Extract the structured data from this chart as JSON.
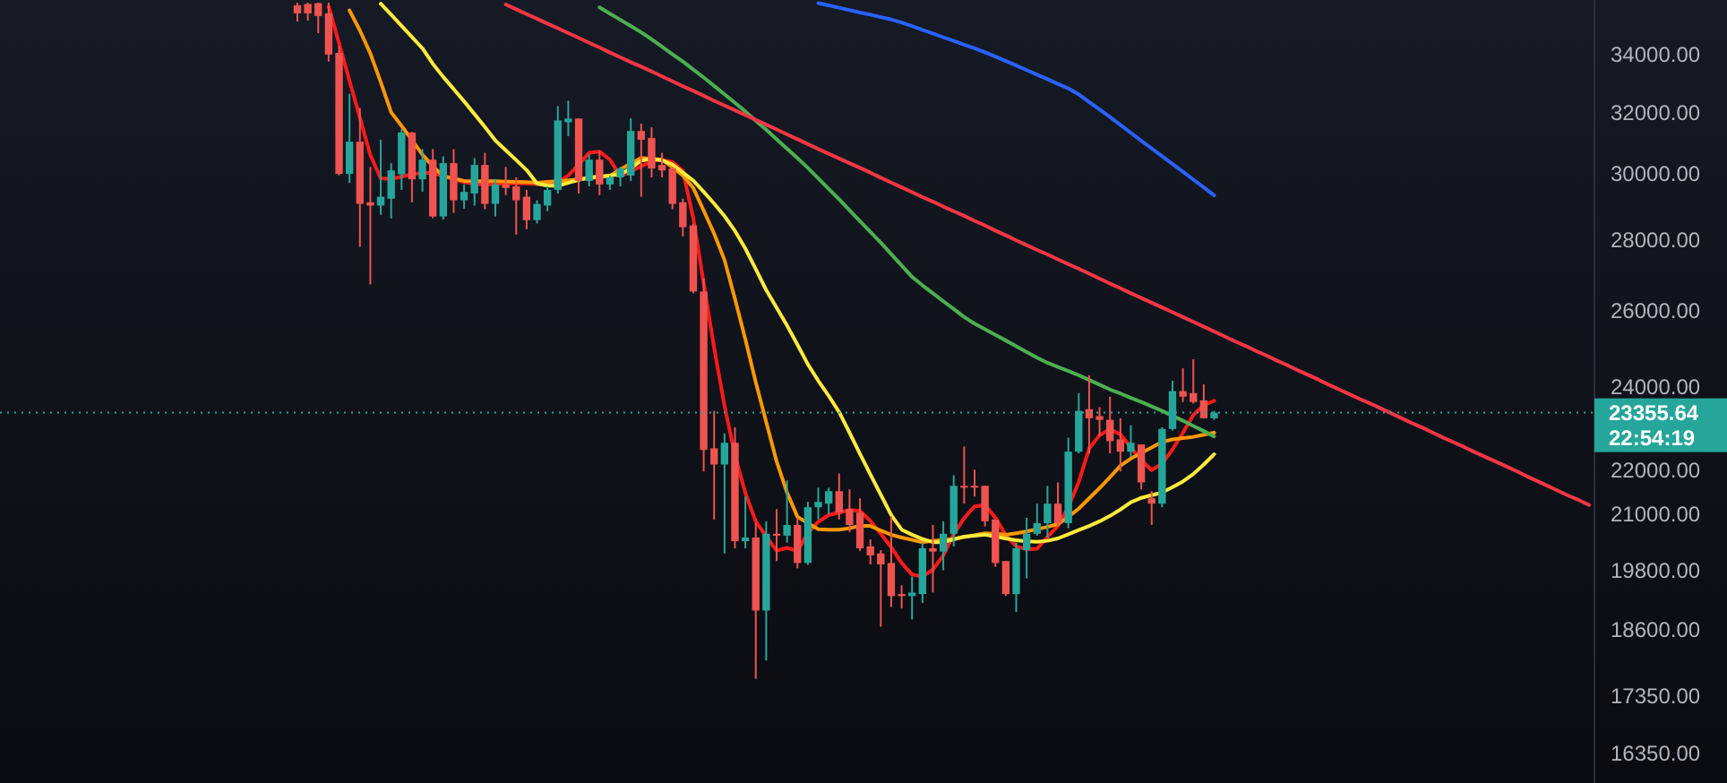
{
  "chart_data": {
    "type": "candlestick",
    "log": true,
    "tick_labels": "y",
    "grid": false,
    "ylim": [
      15840,
      36000
    ],
    "yticks": [
      {
        "value": 16350,
        "label": "16350.00"
      },
      {
        "value": 17350,
        "label": "17350.00"
      },
      {
        "value": 18600,
        "label": "18600.00"
      },
      {
        "value": 19800,
        "label": "19800.00"
      },
      {
        "value": 21000,
        "label": "21000.00"
      },
      {
        "value": 22000,
        "label": "22000.00"
      },
      {
        "value": 24000,
        "label": "24000.00"
      },
      {
        "value": 26000,
        "label": "26000.00"
      },
      {
        "value": 28000,
        "label": "28000.00"
      },
      {
        "value": 30000,
        "label": "30000.00"
      },
      {
        "value": 32000,
        "label": "32000.00"
      },
      {
        "value": 34000,
        "label": "34000.00"
      }
    ],
    "categories": [
      null,
      null,
      null,
      null,
      null,
      null,
      null,
      null,
      null,
      null,
      null,
      null,
      null,
      null,
      null,
      null,
      null,
      null,
      null,
      null,
      null,
      null,
      null,
      null,
      null,
      null,
      null,
      null,
      null,
      null,
      null,
      null,
      null,
      null,
      null,
      null,
      null,
      null,
      null,
      null,
      null,
      null,
      null,
      null,
      null,
      null,
      null,
      null,
      null,
      null,
      null,
      null,
      null,
      null,
      null,
      null,
      null,
      null,
      null,
      null,
      null,
      null,
      null,
      null,
      null,
      null,
      null,
      null,
      null,
      null,
      null,
      null,
      null,
      null,
      null,
      null,
      null,
      null,
      null,
      null,
      null,
      null,
      null,
      null,
      null,
      null,
      null,
      null,
      null,
      null,
      null,
      null,
      null,
      null,
      null,
      null,
      null,
      null,
      null,
      null,
      null,
      null,
      null,
      null,
      null,
      null,
      null,
      null,
      null,
      null,
      null,
      null,
      null,
      null,
      null,
      null,
      null,
      null,
      null,
      null,
      null,
      null,
      null,
      null,
      null
    ],
    "ohlc": [
      [
        35800,
        35900,
        35200,
        35500
      ],
      [
        35850,
        35900,
        35230,
        35500
      ],
      [
        35880,
        35900,
        34770,
        35400
      ],
      [
        35500,
        35900,
        33750,
        34000
      ],
      [
        34060,
        34320,
        29950,
        30000
      ],
      [
        30000,
        32630,
        29720,
        31030
      ],
      [
        31030,
        32150,
        27790,
        29070
      ],
      [
        29120,
        30220,
        26720,
        29020
      ],
      [
        29020,
        31090,
        28740,
        29290
      ],
      [
        29230,
        30340,
        28630,
        30110
      ],
      [
        29990,
        31440,
        29500,
        31330
      ],
      [
        31330,
        31350,
        29120,
        29830
      ],
      [
        29830,
        30790,
        29440,
        30450
      ],
      [
        30450,
        30790,
        28640,
        28690
      ],
      [
        28690,
        30560,
        28600,
        30340
      ],
      [
        30340,
        30790,
        28800,
        29180
      ],
      [
        29180,
        29670,
        28920,
        29440
      ],
      [
        29390,
        30500,
        29020,
        30280
      ],
      [
        30280,
        30670,
        28910,
        29070
      ],
      [
        29070,
        29840,
        28690,
        29670
      ],
      [
        29670,
        30220,
        29340,
        29560
      ],
      [
        29610,
        29890,
        28150,
        29180
      ],
      [
        29290,
        29500,
        28310,
        28580
      ],
      [
        28580,
        29180,
        28480,
        29070
      ],
      [
        29020,
        29610,
        28850,
        29500
      ],
      [
        29500,
        32210,
        29390,
        31730
      ],
      [
        31670,
        32390,
        31210,
        31790
      ],
      [
        31790,
        31800,
        29390,
        29780
      ],
      [
        29780,
        30620,
        29610,
        30450
      ],
      [
        30450,
        30730,
        29340,
        29670
      ],
      [
        29670,
        29950,
        29500,
        29890
      ],
      [
        29890,
        30220,
        29610,
        30170
      ],
      [
        29950,
        31800,
        29780,
        31380
      ],
      [
        31380,
        31620,
        29290,
        31090
      ],
      [
        31150,
        31500,
        29890,
        30170
      ],
      [
        30280,
        30670,
        29890,
        30110
      ],
      [
        30170,
        30220,
        28910,
        29070
      ],
      [
        29120,
        29230,
        28100,
        28370
      ],
      [
        28420,
        28470,
        26470,
        26520
      ],
      [
        26520,
        26880,
        21960,
        22460
      ],
      [
        22500,
        23400,
        20880,
        22120
      ],
      [
        22120,
        22850,
        20150,
        22630
      ],
      [
        22630,
        23000,
        20260,
        20410
      ],
      [
        20410,
        21390,
        20260,
        20490
      ],
      [
        20490,
        20800,
        17670,
        18980
      ],
      [
        18980,
        20840,
        18010,
        20570
      ],
      [
        20570,
        21110,
        19990,
        20530
      ],
      [
        20530,
        21750,
        20380,
        20760
      ],
      [
        20760,
        20920,
        19840,
        19950
      ],
      [
        19950,
        21270,
        19910,
        21150
      ],
      [
        21150,
        21590,
        20880,
        21270
      ],
      [
        21230,
        21590,
        21000,
        21510
      ],
      [
        21510,
        21910,
        20880,
        21030
      ],
      [
        21110,
        21550,
        20610,
        20760
      ],
      [
        21030,
        21350,
        20200,
        20260
      ],
      [
        20300,
        20450,
        19920,
        20110
      ],
      [
        20150,
        20220,
        18660,
        19920
      ],
      [
        19950,
        20950,
        19050,
        19270
      ],
      [
        19310,
        19490,
        19020,
        19270
      ],
      [
        19270,
        19670,
        18800,
        19340
      ],
      [
        19310,
        20380,
        19130,
        20260
      ],
      [
        20260,
        20760,
        19340,
        20190
      ],
      [
        20190,
        20840,
        19800,
        20570
      ],
      [
        20570,
        21870,
        20300,
        21630
      ],
      [
        21630,
        22540,
        21230,
        21590
      ],
      [
        21630,
        22000,
        21390,
        21590
      ],
      [
        21630,
        21630,
        20730,
        20840
      ],
      [
        20880,
        20880,
        19870,
        19950
      ],
      [
        19990,
        19990,
        19270,
        19310
      ],
      [
        19310,
        20380,
        18950,
        20260
      ],
      [
        20220,
        20920,
        19630,
        20570
      ],
      [
        20570,
        21230,
        20530,
        20800
      ],
      [
        20800,
        21630,
        20490,
        21230
      ],
      [
        21230,
        21710,
        20730,
        20800
      ],
      [
        20800,
        22750,
        20690,
        22420
      ],
      [
        22420,
        23840,
        22380,
        23400
      ],
      [
        23440,
        24290,
        22380,
        23220
      ],
      [
        23270,
        23490,
        22790,
        23180
      ],
      [
        23180,
        23750,
        22380,
        22670
      ],
      [
        22710,
        23220,
        21960,
        22420
      ],
      [
        22420,
        23050,
        22290,
        22630
      ],
      [
        22590,
        22590,
        21550,
        21710
      ],
      [
        21350,
        21510,
        20760,
        21230
      ],
      [
        21230,
        23000,
        21150,
        22960
      ],
      [
        22960,
        24150,
        22920,
        23890
      ],
      [
        23890,
        24470,
        23620,
        23750
      ],
      [
        23840,
        24700,
        23580,
        23620
      ],
      [
        23660,
        24060,
        23220,
        23220
      ],
      [
        23220,
        23400,
        23180,
        23355.64
      ],
      null,
      null,
      null,
      null,
      null,
      null,
      null,
      null,
      null,
      null,
      null,
      null,
      null,
      null,
      null,
      null,
      null,
      null,
      null,
      null,
      null,
      null,
      null,
      null,
      null,
      null,
      null,
      null,
      null,
      null,
      null,
      null,
      null,
      null,
      null,
      null
    ],
    "colors": [
      "#ef5350",
      "#ef5350",
      "#ef5350",
      "#ef5350",
      "#ef5350",
      "#26a69a",
      "#ef5350",
      "#ef5350",
      "#26a69a",
      "#26a69a",
      "#26a69a",
      "#ef5350",
      "#26a69a",
      "#ef5350",
      "#26a69a",
      "#ef5350",
      "#26a69a",
      "#26a69a",
      "#ef5350",
      "#26a69a",
      "#ef5350",
      "#ef5350",
      "#ef5350",
      "#26a69a",
      "#26a69a",
      "#26a69a",
      "#26a69a",
      "#ef5350",
      "#26a69a",
      "#ef5350",
      "#26a69a",
      "#26a69a",
      "#26a69a",
      "#ef5350",
      "#ef5350",
      "#ef5350",
      "#ef5350",
      "#ef5350",
      "#ef5350",
      "#ef5350",
      "#ef5350",
      "#26a69a",
      "#ef5350",
      "#26a69a",
      "#ef5350",
      "#26a69a",
      "#ef5350",
      "#26a69a",
      "#ef5350",
      "#26a69a",
      "#26a69a",
      "#26a69a",
      "#ef5350",
      "#ef5350",
      "#ef5350",
      "#ef5350",
      "#ef5350",
      "#ef5350",
      "#ef5350",
      "#26a69a",
      "#26a69a",
      "#ef5350",
      "#26a69a",
      "#26a69a",
      "#ef5350",
      "#ef5350",
      "#ef5350",
      "#ef5350",
      "#ef5350",
      "#26a69a",
      "#26a69a",
      "#26a69a",
      "#26a69a",
      "#ef5350",
      "#26a69a",
      "#26a69a",
      "#ef5350",
      "#ef5350",
      "#ef5350",
      "#ef5350",
      "#26a69a",
      "#ef5350",
      "#ef5350",
      "#26a69a",
      "#26a69a",
      "#ef5350",
      "#ef5350",
      "#ef5350",
      "#26a69a",
      null,
      null,
      null,
      null,
      null,
      null,
      null,
      null,
      null,
      null,
      null,
      null,
      null,
      null,
      null,
      null,
      null,
      null,
      null,
      null,
      null,
      null,
      null,
      null,
      null,
      null,
      null,
      null,
      null,
      null,
      null,
      null,
      null,
      null,
      null,
      null
    ],
    "series": [
      {
        "type": "line",
        "color": "#ff1a1a",
        "values": [
          null,
          null,
          null,
          35760,
          34400,
          33080,
          31820,
          30600,
          29860,
          29840,
          29910,
          29990,
          30030,
          30030,
          29930,
          29830,
          29740,
          29690,
          29660,
          29680,
          29700,
          29710,
          29700,
          29680,
          29670,
          29730,
          29950,
          30290,
          30670,
          30710,
          30450,
          29930,
          30080,
          30240,
          30400,
          30450,
          30370,
          30100,
          28640,
          26750,
          25000,
          23520,
          22340,
          21470,
          20840,
          20510,
          20210,
          20270,
          20200,
          20590,
          20830,
          20980,
          21030,
          21090,
          21070,
          20850,
          20570,
          20280,
          19950,
          19710,
          19670,
          19810,
          20110,
          20560,
          20910,
          21170,
          21200,
          20920,
          20540,
          20300,
          20240,
          20250,
          20500,
          20740,
          21150,
          21720,
          22490,
          22810,
          22950,
          22830,
          22520,
          22220,
          21990,
          22140,
          22470,
          22870,
          23300,
          23540,
          23650,
          null,
          null,
          null,
          null,
          null,
          null,
          null,
          null,
          null,
          null,
          null,
          null,
          null,
          null,
          null,
          null,
          null,
          null,
          null,
          null,
          null,
          null,
          null,
          null,
          null,
          null,
          null,
          null,
          null,
          null,
          null,
          null,
          null,
          null,
          null,
          null
        ]
      },
      {
        "type": "line",
        "color": "#ff9800",
        "values": [
          null,
          null,
          null,
          null,
          null,
          35610,
          34870,
          34040,
          33030,
          32000,
          31550,
          31080,
          30610,
          30240,
          29930,
          29860,
          29780,
          29770,
          29770,
          29770,
          29760,
          29750,
          29740,
          29720,
          29750,
          29770,
          29800,
          29830,
          29870,
          29900,
          29940,
          30140,
          30330,
          30510,
          30480,
          30450,
          30210,
          29950,
          29560,
          28870,
          28180,
          27410,
          26320,
          25220,
          24110,
          23130,
          22190,
          21480,
          20940,
          20800,
          20670,
          20660,
          20660,
          20690,
          20740,
          20740,
          20640,
          20550,
          20490,
          20440,
          20390,
          20420,
          20440,
          20460,
          20500,
          20540,
          20580,
          20570,
          20550,
          20580,
          20620,
          20670,
          20720,
          20780,
          20940,
          21120,
          21350,
          21580,
          21830,
          22090,
          22260,
          22390,
          22520,
          22650,
          22710,
          22740,
          22770,
          22820,
          22870,
          null,
          null,
          null,
          null,
          null,
          null,
          null,
          null,
          null,
          null,
          null,
          null,
          null,
          null,
          null,
          null,
          null,
          null,
          null,
          null,
          null,
          null,
          null,
          null,
          null,
          null,
          null,
          null,
          null,
          null,
          null,
          null,
          null,
          null,
          null,
          null
        ]
      },
      {
        "type": "line",
        "color": "#ffeb3b",
        "values": [
          null,
          null,
          null,
          null,
          null,
          null,
          null,
          null,
          35860,
          35450,
          35040,
          34630,
          34220,
          33670,
          33210,
          32790,
          32370,
          31940,
          31510,
          31070,
          30750,
          30440,
          30120,
          29700,
          29630,
          29630,
          29720,
          29810,
          29890,
          29920,
          29950,
          29980,
          30180,
          30420,
          30480,
          30430,
          30300,
          30040,
          29790,
          29440,
          29080,
          28700,
          28260,
          27740,
          27150,
          26560,
          26070,
          25590,
          25080,
          24570,
          24150,
          23770,
          23370,
          22870,
          22370,
          21890,
          21430,
          20980,
          20660,
          20550,
          20460,
          20390,
          20390,
          20450,
          20510,
          20530,
          20550,
          20510,
          20470,
          20430,
          20410,
          20400,
          20420,
          20470,
          20560,
          20650,
          20740,
          20840,
          20960,
          21100,
          21260,
          21360,
          21420,
          21480,
          21600,
          21730,
          21900,
          22120,
          22360,
          null,
          null,
          null,
          null,
          null,
          null,
          null,
          null,
          null,
          null,
          null,
          null,
          null,
          null,
          null,
          null,
          null,
          null,
          null,
          null,
          null,
          null,
          null,
          null,
          null,
          null,
          null,
          null,
          null,
          null,
          null,
          null,
          null,
          null,
          null,
          null
        ]
      },
      {
        "type": "line",
        "color": "#4caf50",
        "values": [
          null,
          null,
          null,
          null,
          null,
          null,
          null,
          null,
          null,
          null,
          null,
          null,
          null,
          null,
          null,
          null,
          null,
          null,
          null,
          null,
          null,
          null,
          null,
          null,
          null,
          null,
          null,
          null,
          null,
          35720,
          35490,
          35260,
          35030,
          34800,
          34550,
          34280,
          34010,
          33750,
          33470,
          33190,
          32900,
          32610,
          32320,
          32030,
          31720,
          31420,
          31110,
          30800,
          30500,
          30190,
          29860,
          29530,
          29210,
          28880,
          28550,
          28230,
          27910,
          27580,
          27250,
          26930,
          26690,
          26470,
          26250,
          26040,
          25820,
          25640,
          25490,
          25340,
          25190,
          25040,
          24890,
          24740,
          24610,
          24500,
          24400,
          24290,
          24170,
          24050,
          23930,
          23830,
          23720,
          23620,
          23510,
          23400,
          23280,
          23160,
          23030,
          22910,
          22780,
          null,
          null,
          null,
          null,
          null,
          null,
          null,
          null,
          null,
          null,
          null,
          null,
          null,
          null,
          null,
          null,
          null,
          null,
          null,
          null,
          null,
          null,
          null,
          null,
          null,
          null,
          null,
          null,
          null,
          null,
          null,
          null,
          null,
          null,
          null,
          null
        ]
      },
      {
        "type": "line",
        "color": "#2962ff",
        "values": [
          null,
          null,
          null,
          null,
          null,
          null,
          null,
          null,
          null,
          null,
          null,
          null,
          null,
          null,
          null,
          null,
          null,
          null,
          null,
          null,
          null,
          null,
          null,
          null,
          null,
          null,
          null,
          null,
          null,
          null,
          null,
          null,
          null,
          null,
          null,
          null,
          null,
          null,
          null,
          null,
          null,
          null,
          null,
          null,
          null,
          null,
          null,
          null,
          null,
          null,
          35880,
          35800,
          35710,
          35620,
          35530,
          35450,
          35360,
          35270,
          35160,
          35030,
          34890,
          34760,
          34620,
          34490,
          34350,
          34220,
          34080,
          33930,
          33770,
          33610,
          33450,
          33290,
          33130,
          32970,
          32810,
          32610,
          32350,
          32100,
          31840,
          31580,
          31320,
          31060,
          30810,
          30560,
          30310,
          30070,
          29820,
          29580,
          29330,
          null,
          null,
          null,
          null,
          null,
          null,
          null,
          null,
          null,
          null,
          null,
          null,
          null,
          null,
          null,
          null,
          null,
          null,
          null,
          null,
          null,
          null,
          null,
          null,
          null,
          null,
          null,
          null,
          null,
          null,
          null,
          null,
          null,
          null,
          null,
          null
        ]
      },
      {
        "type": "line",
        "color": "#f23645",
        "values": [
          null,
          null,
          null,
          null,
          null,
          null,
          null,
          null,
          null,
          null,
          null,
          null,
          null,
          null,
          null,
          null,
          null,
          null,
          null,
          null,
          35830,
          35650,
          35470,
          35300,
          35120,
          34950,
          34770,
          34600,
          34420,
          34250,
          34070,
          33900,
          33730,
          33570,
          33400,
          33230,
          33060,
          32890,
          32730,
          32560,
          32390,
          32230,
          32070,
          31910,
          31750,
          31590,
          31430,
          31270,
          31110,
          30950,
          30790,
          30640,
          30490,
          30340,
          30190,
          30040,
          29880,
          29730,
          29580,
          29430,
          29280,
          29140,
          28990,
          28850,
          28710,
          28560,
          28420,
          28270,
          28130,
          27980,
          27840,
          27700,
          27570,
          27430,
          27290,
          27160,
          27020,
          26880,
          26740,
          26610,
          26470,
          26340,
          26210,
          26080,
          25950,
          25820,
          25690,
          25560,
          25430,
          25300,
          25170,
          25050,
          24920,
          24800,
          24670,
          24550,
          24420,
          24300,
          24180,
          24050,
          23930,
          23810,
          23690,
          23580,
          23460,
          23340,
          23220,
          23100,
          22990,
          22870,
          22750,
          22640,
          22530,
          22410,
          22300,
          22190,
          22080,
          21970,
          21850,
          21740,
          21630,
          21520,
          21410,
          21310,
          21200
        ]
      }
    ],
    "ref_lines": [
      {
        "axis": "y",
        "value": 23355.64,
        "label": "23355.64",
        "color": "#26a69a",
        "line_style": "dotted"
      }
    ],
    "annotations": [
      "22:54:19"
    ]
  }
}
